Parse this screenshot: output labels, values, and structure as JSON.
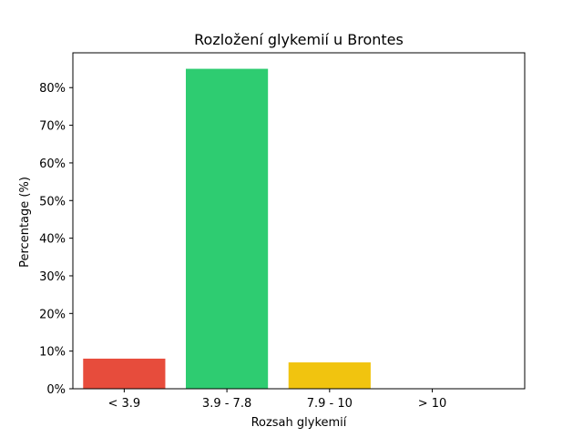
{
  "chart_data": {
    "type": "bar",
    "title": "Rozložení glykemií u  Brontes",
    "xlabel": "Rozsah glykemií",
    "ylabel": "Percentage (%)",
    "categories": [
      "< 3.9",
      "3.9 - 7.8",
      "7.9 - 10",
      "> 10"
    ],
    "values": [
      8.0,
      85.0,
      7.0,
      0.0
    ],
    "colors": [
      "#e74c3c",
      "#2ecc71",
      "#f1c40f",
      "#3498db"
    ],
    "ylim": [
      0,
      89.25
    ],
    "yticks": [
      0,
      10,
      20,
      30,
      40,
      50,
      60,
      70,
      80
    ],
    "ytick_format": "{v}%",
    "grid": false,
    "legend": "none"
  }
}
